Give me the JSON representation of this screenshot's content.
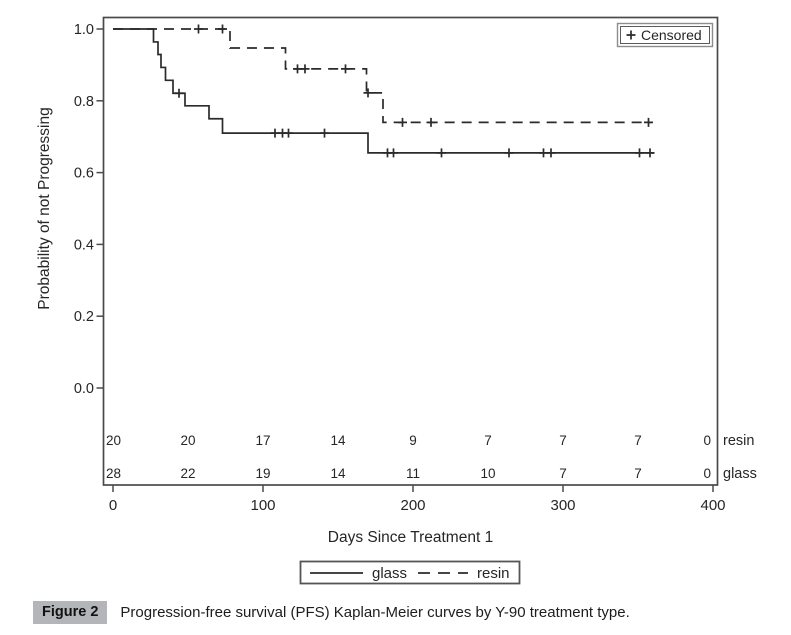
{
  "figure": {
    "label": "Figure 2",
    "caption": "Progression-free survival (PFS) Kaplan-Meier curves by Y-90 treatment type."
  },
  "chart_data": {
    "type": "line",
    "subtype": "kaplan-meier-step",
    "title": "",
    "xlabel": "Days Since Treatment 1",
    "ylabel": "Probability of not Progressing",
    "xlim": [
      0,
      400
    ],
    "ylim": [
      0.0,
      1.0
    ],
    "xticks": [
      0,
      100,
      200,
      300,
      400
    ],
    "xtick_labels": [
      "0",
      "100",
      "200",
      "300",
      "400"
    ],
    "yticks": [
      0.0,
      0.2,
      0.4,
      0.6,
      0.8,
      1.0
    ],
    "ytick_labels": [
      "0.0",
      "0.2",
      "0.4",
      "0.6",
      "0.8",
      "1.0"
    ],
    "grid": false,
    "censored_legend": {
      "marker": "+",
      "label": "Censored",
      "position": "top-right"
    },
    "series": [
      {
        "name": "glass",
        "line_style": "solid",
        "color": "#2b2b2b",
        "points": [
          [
            0,
            1.0
          ],
          [
            27,
            0.964
          ],
          [
            30,
            0.929
          ],
          [
            32,
            0.893
          ],
          [
            35,
            0.857
          ],
          [
            40,
            0.821
          ],
          [
            48,
            0.786
          ],
          [
            64,
            0.75
          ],
          [
            73,
            0.71
          ],
          [
            170,
            0.655
          ],
          [
            361,
            0.655
          ]
        ],
        "censor_marks": [
          [
            44,
            0.821
          ],
          [
            108,
            0.71
          ],
          [
            113,
            0.71
          ],
          [
            117,
            0.71
          ],
          [
            141,
            0.71
          ],
          [
            183,
            0.655
          ],
          [
            187,
            0.655
          ],
          [
            219,
            0.655
          ],
          [
            264,
            0.655
          ],
          [
            287,
            0.655
          ],
          [
            292,
            0.655
          ],
          [
            351,
            0.655
          ],
          [
            358,
            0.655
          ]
        ]
      },
      {
        "name": "resin",
        "line_style": "dashed",
        "color": "#2b2b2b",
        "points": [
          [
            0,
            1.0
          ],
          [
            78,
            0.947
          ],
          [
            115,
            0.889
          ],
          [
            169,
            0.822
          ],
          [
            180,
            0.74
          ],
          [
            359,
            0.74
          ]
        ],
        "censor_marks": [
          [
            57,
            1.0
          ],
          [
            73,
            1.0
          ],
          [
            123,
            0.889
          ],
          [
            128,
            0.889
          ],
          [
            155,
            0.889
          ],
          [
            170,
            0.822
          ],
          [
            193,
            0.74
          ],
          [
            212,
            0.74
          ],
          [
            357,
            0.74
          ]
        ]
      }
    ],
    "at_risk_table": {
      "times": [
        0,
        50,
        100,
        150,
        200,
        250,
        300,
        350,
        400
      ],
      "rows": [
        {
          "label": "resin",
          "counts": [
            20,
            20,
            17,
            14,
            9,
            7,
            7,
            7,
            0
          ]
        },
        {
          "label": "glass",
          "counts": [
            28,
            22,
            19,
            14,
            11,
            10,
            7,
            7,
            0
          ]
        }
      ]
    },
    "legend": {
      "position": "bottom",
      "entries": [
        {
          "label": "glass",
          "line_style": "solid"
        },
        {
          "label": "resin",
          "line_style": "dashed"
        }
      ]
    }
  },
  "colors": {
    "line": "#2b2b2b",
    "frame": "#4a4a4a",
    "text": "#262626",
    "caption_box_bg": "#b4b5b9"
  }
}
